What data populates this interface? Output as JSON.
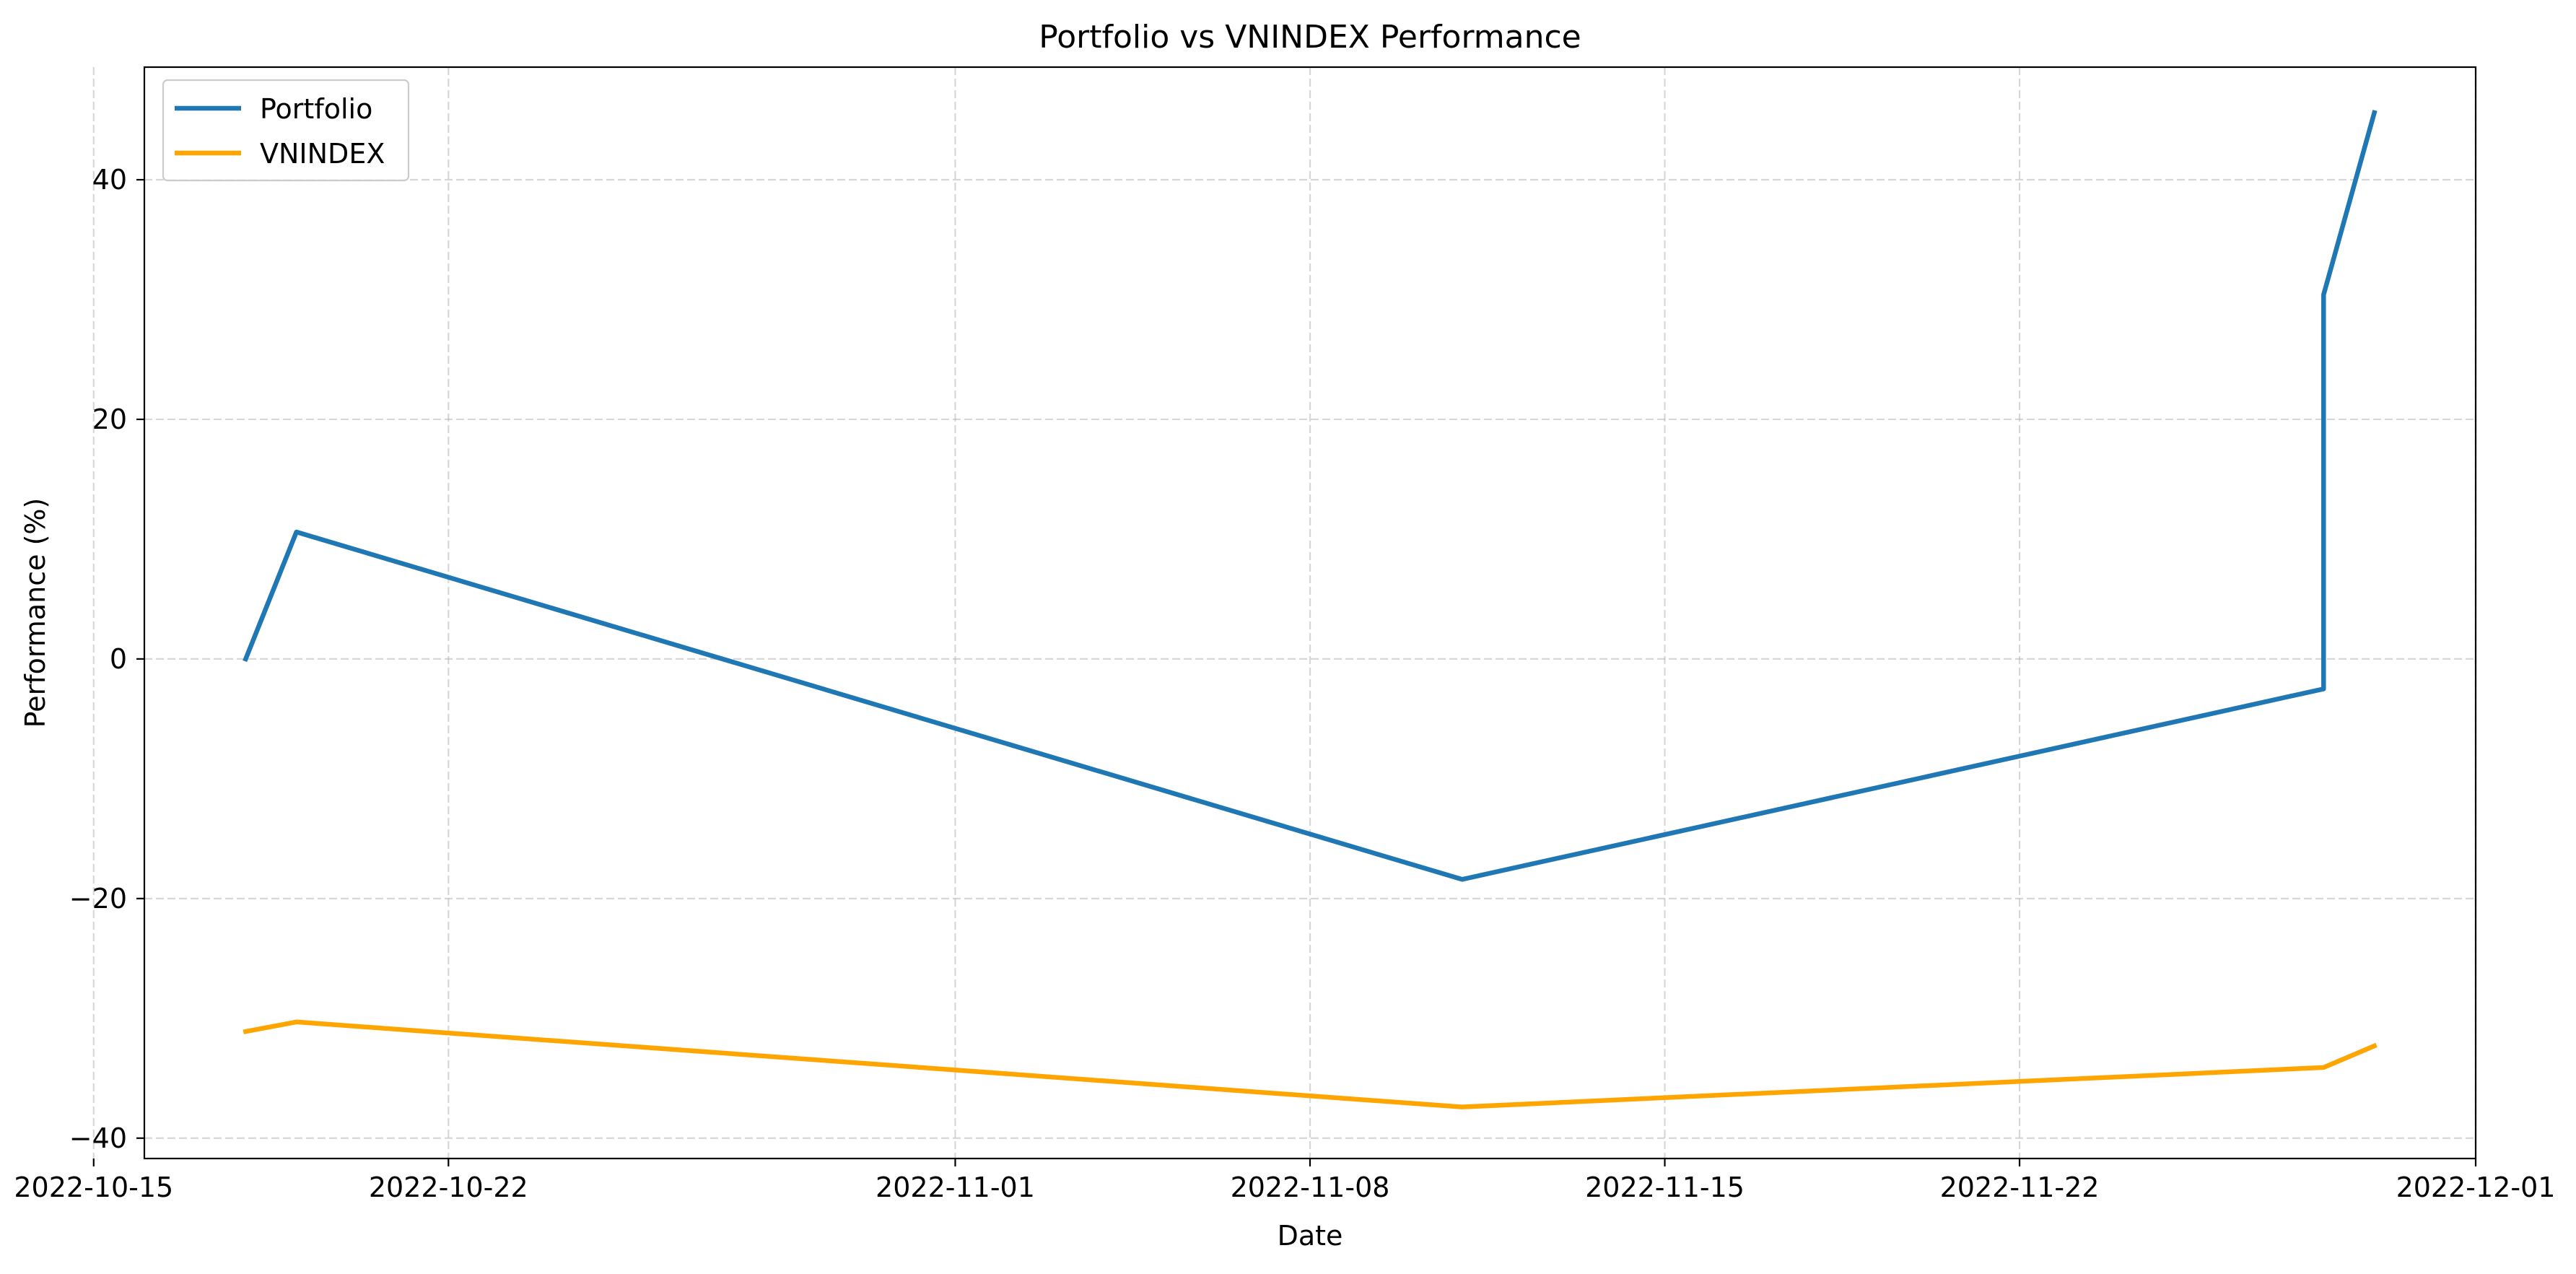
{
  "chart_data": {
    "type": "line",
    "title": "Portfolio vs VNINDEX Performance",
    "xlabel": "Date",
    "ylabel": "Performance (%)",
    "x_axis_type": "date",
    "x": [
      "2022-10-18",
      "2022-10-19",
      "2022-11-11",
      "2022-11-28",
      "2022-11-29"
    ],
    "series": [
      {
        "name": "Portfolio",
        "color": "#1f77b4",
        "points": [
          {
            "x": "2022-10-18",
            "y": 0.0
          },
          {
            "x": "2022-10-19",
            "y": 10.6
          },
          {
            "x": "2022-11-11",
            "y": -18.4
          },
          {
            "x": "2022-11-28",
            "y": -2.5
          },
          {
            "x": "2022-11-28",
            "y": 30.4
          },
          {
            "x": "2022-11-29",
            "y": 45.6
          }
        ]
      },
      {
        "name": "VNINDEX",
        "color": "#ffa500",
        "points": [
          {
            "x": "2022-10-18",
            "y": -31.1
          },
          {
            "x": "2022-10-19",
            "y": -30.3
          },
          {
            "x": "2022-11-11",
            "y": -37.4
          },
          {
            "x": "2022-11-28",
            "y": -34.1
          },
          {
            "x": "2022-11-29",
            "y": -32.3
          }
        ]
      }
    ],
    "xlim": [
      "2022-10-16",
      "2022-12-01"
    ],
    "ylim": [
      -41.7,
      49.4
    ],
    "x_ticks": [
      "2022-10-15",
      "2022-10-22",
      "2022-11-01",
      "2022-11-08",
      "2022-11-15",
      "2022-11-22",
      "2022-12-01"
    ],
    "y_ticks": [
      -40,
      -20,
      0,
      20,
      40
    ],
    "y_tick_labels": [
      "−40",
      "−20",
      "0",
      "20",
      "40"
    ],
    "grid": true,
    "legend_position": "upper-left"
  }
}
